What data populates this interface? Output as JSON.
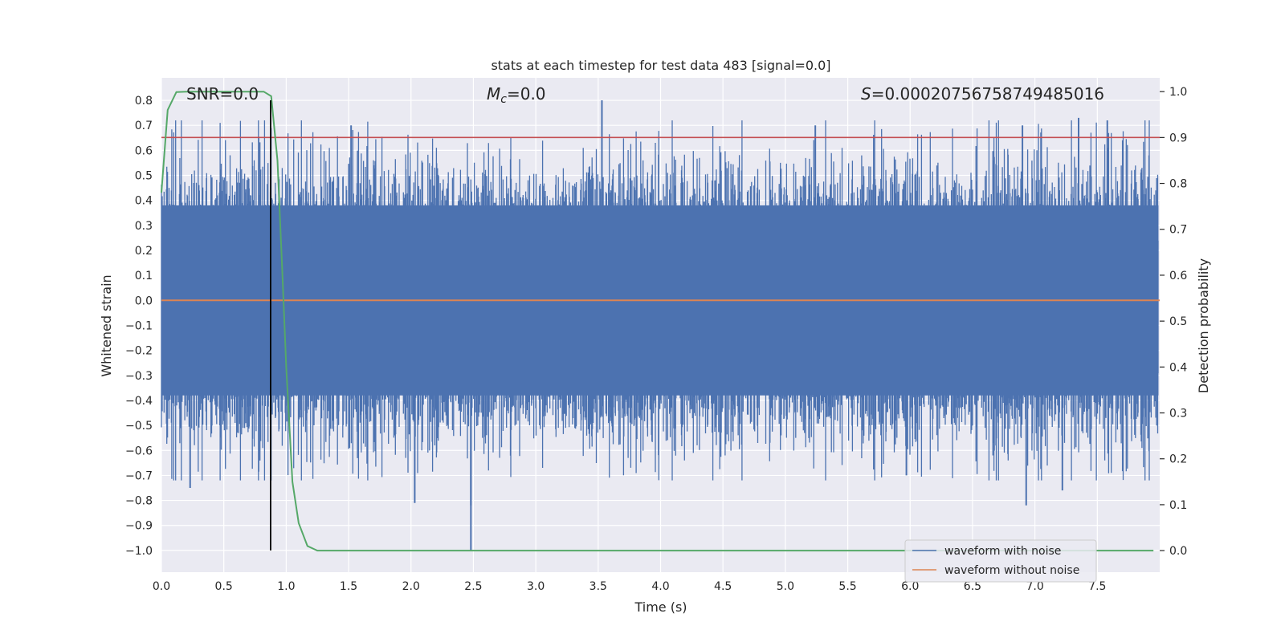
{
  "chart_data": {
    "type": "line",
    "title": "stats at each timestep for test data 483 [signal=0.0]",
    "xlabel": "Time (s)",
    "ylabel_left": "Whitened strain",
    "ylabel_right": "Detection probability",
    "xlim": [
      0.0,
      8.0
    ],
    "ylim_left": [
      -1.087,
      0.89
    ],
    "ylim_right": [
      -0.047,
      1.03
    ],
    "x_ticks": [
      "0.0",
      "0.5",
      "1.0",
      "1.5",
      "2.0",
      "2.5",
      "3.0",
      "3.5",
      "4.0",
      "4.5",
      "5.0",
      "5.5",
      "6.0",
      "6.5",
      "7.0",
      "7.5"
    ],
    "x_tick_values": [
      0.0,
      0.5,
      1.0,
      1.5,
      2.0,
      2.5,
      3.0,
      3.5,
      4.0,
      4.5,
      5.0,
      5.5,
      6.0,
      6.5,
      7.0,
      7.5
    ],
    "y_left_ticks": [
      "0.8",
      "0.7",
      "0.6",
      "0.5",
      "0.4",
      "0.3",
      "0.2",
      "0.1",
      "0.0",
      "−0.1",
      "−0.2",
      "−0.3",
      "−0.4",
      "−0.5",
      "−0.6",
      "−0.7",
      "−0.8",
      "−0.9",
      "−1.0"
    ],
    "y_left_tick_values": [
      0.8,
      0.7,
      0.6,
      0.5,
      0.4,
      0.3,
      0.2,
      0.1,
      0.0,
      -0.1,
      -0.2,
      -0.3,
      -0.4,
      -0.5,
      -0.6,
      -0.7,
      -0.8,
      -0.9,
      -1.0
    ],
    "y_right_ticks": [
      "1.0",
      "0.9",
      "0.8",
      "0.7",
      "0.6",
      "0.5",
      "0.4",
      "0.3",
      "0.2",
      "0.1",
      "0.0"
    ],
    "y_right_tick_values": [
      1.0,
      0.9,
      0.8,
      0.7,
      0.6,
      0.5,
      0.4,
      0.3,
      0.2,
      0.1,
      0.0
    ],
    "annotations": {
      "snr": "SNR=0.0",
      "mc_symbol": "M",
      "mc_sub": "c",
      "mc_value": "=0.0",
      "s_symbol": "S",
      "s_value": "=0.00020756758749485016"
    },
    "series": [
      {
        "name": "waveform with noise",
        "color": "#4c72b0",
        "axis": "left",
        "style": "noise",
        "band": [
          -0.38,
          0.38
        ],
        "peaks": [
          {
            "x": 3.53,
            "y": 0.8
          },
          {
            "x": 2.48,
            "y": -1.0
          },
          {
            "x": 2.48,
            "y": -0.82
          },
          {
            "x": 2.03,
            "y": -0.81
          },
          {
            "x": 6.93,
            "y": -0.82
          },
          {
            "x": 7.22,
            "y": -0.76
          },
          {
            "x": 0.23,
            "y": -0.75
          },
          {
            "x": 7.58,
            "y": 0.72
          },
          {
            "x": 7.35,
            "y": 0.73
          },
          {
            "x": 6.9,
            "y": 0.7
          },
          {
            "x": 1.52,
            "y": 0.7
          },
          {
            "x": 5.97,
            "y": -0.7
          },
          {
            "x": 5.24,
            "y": 0.7
          }
        ]
      },
      {
        "name": "waveform without noise",
        "color": "#dd8452",
        "axis": "left",
        "x": [
          0.0,
          8.0
        ],
        "y": [
          0.0,
          0.0
        ]
      },
      {
        "name": "detection probability",
        "color": "#55a868",
        "axis": "right",
        "x": [
          0.0,
          0.05,
          0.12,
          0.2,
          0.3,
          0.5,
          0.7,
          0.82,
          0.88,
          0.93,
          0.97,
          1.0,
          1.05,
          1.1,
          1.17,
          1.25,
          1.4,
          2.0,
          4.0,
          6.0,
          7.95
        ],
        "y": [
          0.78,
          0.96,
          0.999,
          1.0,
          1.0,
          1.0,
          1.0,
          1.0,
          0.99,
          0.85,
          0.6,
          0.4,
          0.15,
          0.06,
          0.01,
          0.0,
          0.0,
          0.0,
          0.0,
          0.0,
          0.0
        ]
      }
    ],
    "threshold_line": {
      "axis": "right",
      "value": 0.9,
      "color": "#c44e52"
    },
    "vertical_line": {
      "x": 0.875,
      "color": "#000000"
    },
    "legend": {
      "position": "lower-right",
      "entries": [
        {
          "label": "waveform with noise",
          "color": "#4c72b0"
        },
        {
          "label": "waveform without noise",
          "color": "#dd8452"
        }
      ]
    },
    "colors": {
      "plot_background": "#eaeaf2",
      "grid": "#ffffff",
      "text": "#262626"
    }
  }
}
